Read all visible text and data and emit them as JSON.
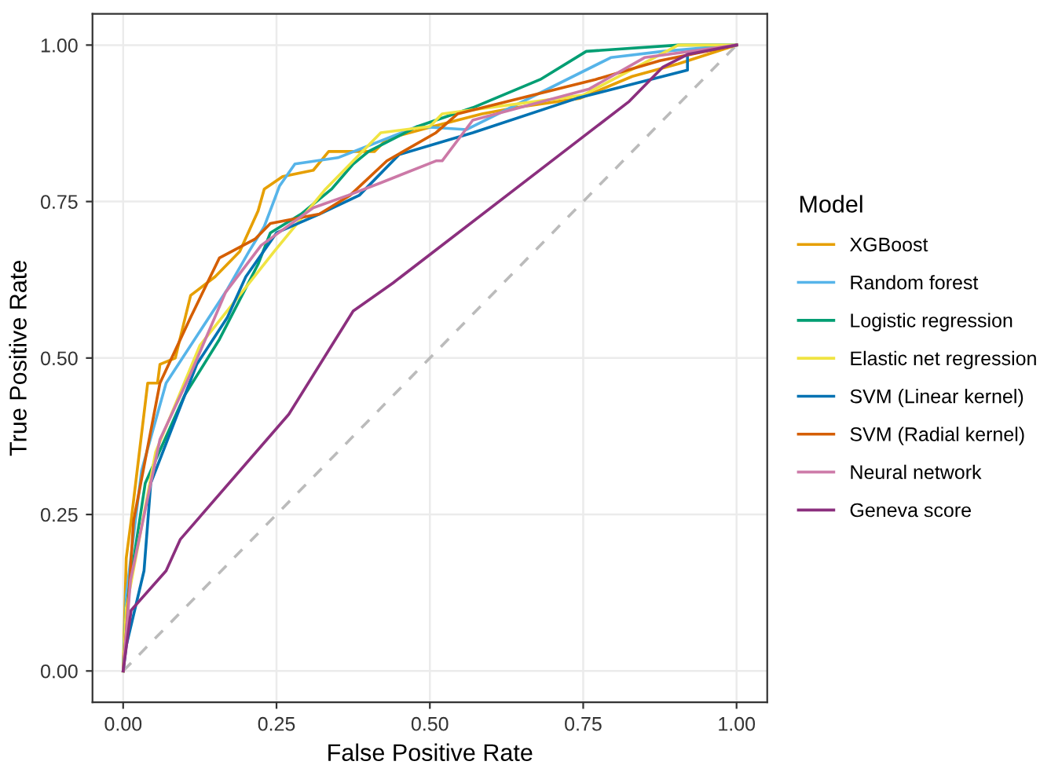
{
  "chart_data": {
    "type": "line",
    "xlabel": "False Positive Rate",
    "ylabel": "True Positive Rate",
    "legend_title": "Model",
    "legend": "right",
    "grid": true,
    "xlim": [
      -0.05,
      1.05
    ],
    "ylim": [
      -0.05,
      1.05
    ],
    "xticks": [
      {
        "value": 0,
        "label": "0.00"
      },
      {
        "value": 0.25,
        "label": "0.25"
      },
      {
        "value": 0.5,
        "label": "0.50"
      },
      {
        "value": 0.75,
        "label": "0.75"
      },
      {
        "value": 1,
        "label": "1.00"
      }
    ],
    "yticks": [
      {
        "value": 0,
        "label": "0.00"
      },
      {
        "value": 0.25,
        "label": "0.25"
      },
      {
        "value": 0.5,
        "label": "0.50"
      },
      {
        "value": 0.75,
        "label": "0.75"
      },
      {
        "value": 1,
        "label": "1.00"
      }
    ],
    "series": [
      {
        "color": "#bbbbbb",
        "line_style": "dashed",
        "x": [
          0,
          1
        ],
        "values": [
          0,
          1
        ]
      },
      {
        "name": "XGBoost",
        "color": "#E69F00",
        "x": [
          0,
          0.005,
          0.013,
          0.04,
          0.056,
          0.06,
          0.085,
          0.11,
          0.15,
          0.19,
          0.22,
          0.23,
          0.26,
          0.31,
          0.335,
          0.41,
          0.43,
          0.505,
          0.585,
          0.64,
          0.745,
          0.83,
          0.905,
          1
        ],
        "values": [
          0,
          0.18,
          0.24,
          0.46,
          0.46,
          0.49,
          0.5,
          0.6,
          0.63,
          0.67,
          0.735,
          0.77,
          0.79,
          0.8,
          0.83,
          0.83,
          0.85,
          0.87,
          0.89,
          0.9,
          0.915,
          0.95,
          0.97,
          1
        ]
      },
      {
        "name": "Random forest",
        "color": "#56B4E9",
        "x": [
          0,
          0.005,
          0.03,
          0.07,
          0.17,
          0.205,
          0.23,
          0.255,
          0.28,
          0.35,
          0.48,
          0.56,
          0.795,
          0.88,
          1
        ],
        "values": [
          0,
          0.12,
          0.32,
          0.46,
          0.61,
          0.67,
          0.71,
          0.775,
          0.81,
          0.82,
          0.87,
          0.865,
          0.98,
          0.99,
          1
        ]
      },
      {
        "name": "Logistic regression",
        "color": "#009E73",
        "x": [
          0,
          0.005,
          0.036,
          0.1,
          0.157,
          0.22,
          0.24,
          0.29,
          0.34,
          0.375,
          0.4,
          0.48,
          0.57,
          0.68,
          0.755,
          0.905,
          1
        ],
        "values": [
          0,
          0.1,
          0.3,
          0.44,
          0.53,
          0.65,
          0.7,
          0.73,
          0.77,
          0.81,
          0.83,
          0.87,
          0.9,
          0.945,
          0.99,
          1,
          1
        ]
      },
      {
        "name": "Elastic net regression",
        "color": "#F0E442",
        "x": [
          0,
          0.005,
          0.053,
          0.125,
          0.246,
          0.33,
          0.42,
          0.5,
          0.52,
          0.75,
          0.905,
          1
        ],
        "values": [
          0,
          0.1,
          0.35,
          0.52,
          0.67,
          0.77,
          0.86,
          0.87,
          0.89,
          0.92,
          1,
          1
        ]
      },
      {
        "name": "SVM (Linear kernel)",
        "color": "#0072B2",
        "x": [
          0,
          0.005,
          0.034,
          0.045,
          0.12,
          0.17,
          0.2,
          0.25,
          0.32,
          0.385,
          0.45,
          0.57,
          0.74,
          0.92,
          0.92,
          1
        ],
        "values": [
          0,
          0.04,
          0.16,
          0.3,
          0.49,
          0.565,
          0.63,
          0.7,
          0.73,
          0.76,
          0.825,
          0.86,
          0.915,
          0.96,
          0.985,
          1
        ]
      },
      {
        "name": "SVM (Radial kernel)",
        "color": "#D55E00",
        "x": [
          0,
          0.005,
          0.017,
          0.06,
          0.11,
          0.157,
          0.215,
          0.24,
          0.32,
          0.37,
          0.43,
          0.51,
          0.545,
          0.77,
          0.875,
          1
        ],
        "values": [
          0,
          0.06,
          0.24,
          0.46,
          0.565,
          0.66,
          0.69,
          0.715,
          0.73,
          0.76,
          0.815,
          0.86,
          0.89,
          0.945,
          0.975,
          1
        ]
      },
      {
        "name": "Neural network",
        "color": "#CC79A7",
        "x": [
          0,
          0.012,
          0.06,
          0.11,
          0.167,
          0.225,
          0.31,
          0.367,
          0.42,
          0.51,
          0.52,
          0.57,
          0.76,
          0.85,
          1
        ],
        "values": [
          0,
          0.145,
          0.37,
          0.475,
          0.605,
          0.68,
          0.74,
          0.76,
          0.78,
          0.815,
          0.815,
          0.88,
          0.93,
          0.98,
          1
        ]
      },
      {
        "name": "Geneva score",
        "color": "#8B2F7E",
        "x": [
          0,
          0.013,
          0.07,
          0.093,
          0.27,
          0.375,
          0.44,
          0.825,
          0.88,
          0.92,
          1
        ],
        "values": [
          0,
          0.097,
          0.16,
          0.21,
          0.41,
          0.575,
          0.62,
          0.91,
          0.965,
          0.985,
          1
        ]
      }
    ]
  }
}
